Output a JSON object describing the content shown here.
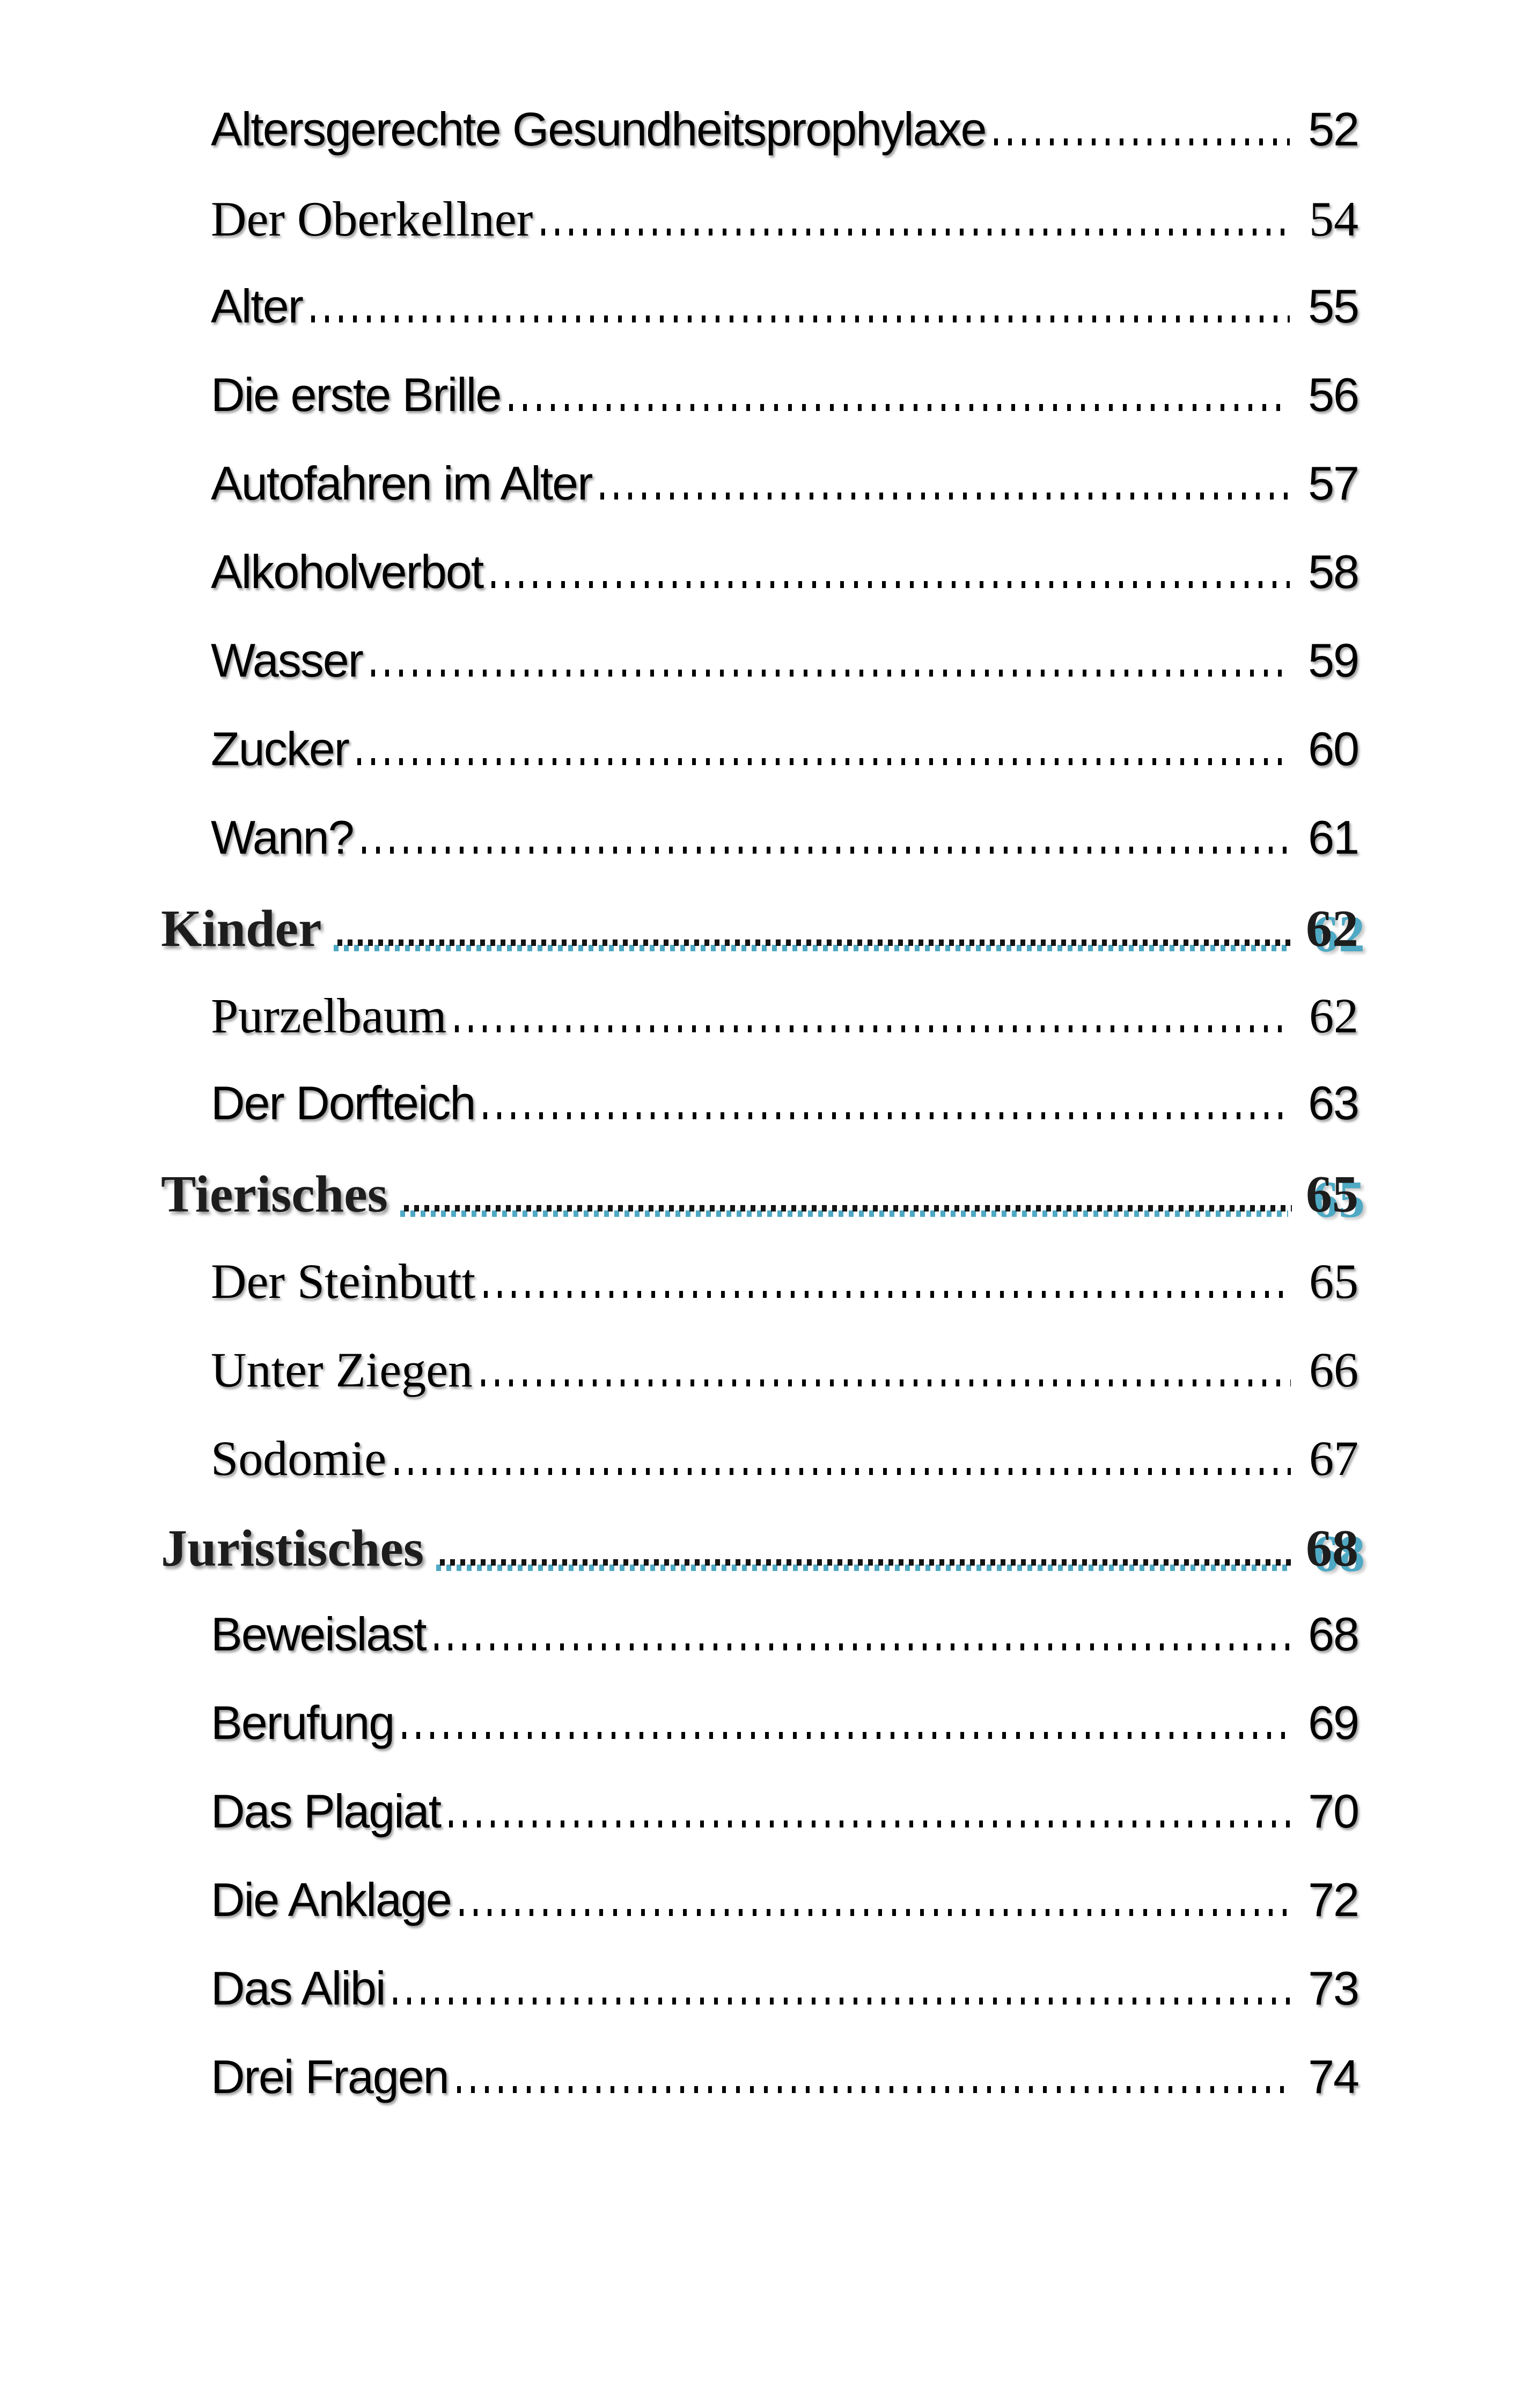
{
  "page": {
    "background": "#ffffff"
  },
  "colors": {
    "accent_teal": "#4fa9c4",
    "entry_text": "#000000",
    "heading_text": "#1d1d1d"
  },
  "toc": {
    "rows": [
      {
        "label": "Altersgerechte Gesundheitsprophylaxe",
        "page": "52",
        "style": "sans"
      },
      {
        "label": "Der Oberkellner",
        "page": "54",
        "style": "serif"
      },
      {
        "label": "Alter",
        "page": "55",
        "style": "sans"
      },
      {
        "label": "Die erste Brille",
        "page": "56",
        "style": "sans"
      },
      {
        "label": "Autofahren im Alter",
        "page": "57",
        "style": "sans"
      },
      {
        "label": "Alkoholverbot",
        "page": "58",
        "style": "sans"
      },
      {
        "label": "Wasser",
        "page": "59",
        "style": "sans"
      },
      {
        "label": "Zucker",
        "page": "60",
        "style": "sans"
      },
      {
        "label": "Wann?",
        "page": "61",
        "style": "sans"
      },
      {
        "label": "Kinder",
        "page": "62",
        "style": "heading"
      },
      {
        "label": "Purzelbaum",
        "page": "62",
        "style": "serif"
      },
      {
        "label": "Der Dorfteich",
        "page": "63",
        "style": "sans"
      },
      {
        "label": "Tierisches",
        "page": "65",
        "style": "heading"
      },
      {
        "label": "Der Steinbutt",
        "page": "65",
        "style": "serif"
      },
      {
        "label": "Unter Ziegen",
        "page": "66",
        "style": "serif"
      },
      {
        "label": "Sodomie",
        "page": "67",
        "style": "serif"
      },
      {
        "label": "Juristisches",
        "page": "68",
        "style": "heading"
      },
      {
        "label": "Beweislast",
        "page": "68",
        "style": "sans"
      },
      {
        "label": "Berufung",
        "page": "69",
        "style": "sans"
      },
      {
        "label": "Das Plagiat",
        "page": "70",
        "style": "sans"
      },
      {
        "label": "Die Anklage",
        "page": "72",
        "style": "sans"
      },
      {
        "label": "Das Alibi",
        "page": "73",
        "style": "sans"
      },
      {
        "label": "Drei Fragen",
        "page": "74",
        "style": "sans"
      }
    ]
  }
}
